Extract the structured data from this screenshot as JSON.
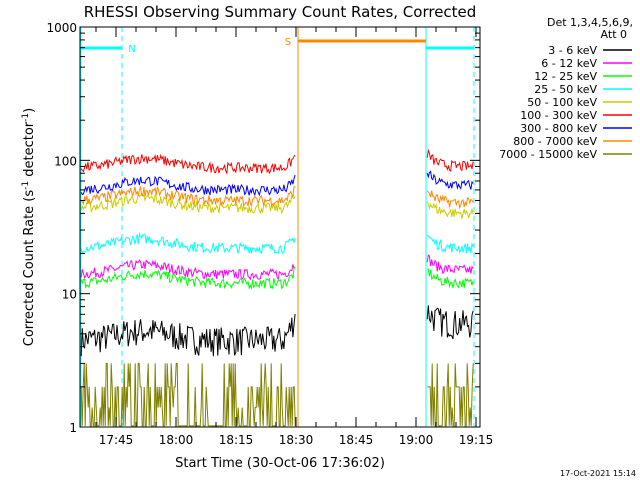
{
  "chart_data": {
    "type": "line",
    "title": "RHESSI Observing Summary Count Rates, Corrected",
    "xlabel": "Start Time (30-Oct-06 17:36:02)",
    "ylabel_main": "Corrected Count Rate (s",
    "ylabel_sup1": "-1",
    "ylabel_mid": " detector",
    "ylabel_sup2": "-1",
    "ylabel_end": ")",
    "y_scale": "log",
    "ylim": [
      1,
      1000
    ],
    "xlim_minutes": [
      36,
      136
    ],
    "y_ticks": [
      {
        "value": 1,
        "label": "1"
      },
      {
        "value": 10,
        "label": "10"
      },
      {
        "value": 100,
        "label": "100"
      },
      {
        "value": 1000,
        "label": "1000"
      }
    ],
    "x_ticks": [
      {
        "minute": 45,
        "label": "17:45"
      },
      {
        "minute": 60,
        "label": "18:00"
      },
      {
        "minute": 75,
        "label": "18:15"
      },
      {
        "minute": 90,
        "label": "18:30"
      },
      {
        "minute": 105,
        "label": "18:45"
      },
      {
        "minute": 120,
        "label": "19:00"
      },
      {
        "minute": 135,
        "label": "19:15"
      }
    ],
    "legend_header": [
      "Det 1,3,4,5,6,9,",
      "Att 0"
    ],
    "legend_placement": "right",
    "series": [
      {
        "name": "3 - 6 keV",
        "color": "#000000",
        "level_before": 4.5,
        "level_after": 6
      },
      {
        "name": "6 - 12 keV",
        "color": "#ff00ff",
        "level_before": 14,
        "level_after": 15
      },
      {
        "name": "12 - 25 keV",
        "color": "#00ff00",
        "level_before": 12,
        "level_after": 12
      },
      {
        "name": "25 - 50 keV",
        "color": "#00ffff",
        "level_before": 22,
        "level_after": 22
      },
      {
        "name": "50 - 100 keV",
        "color": "#cccc00",
        "level_before": 44,
        "level_after": 40
      },
      {
        "name": "100 - 300 keV",
        "color": "#ff0000",
        "level_before": 88,
        "level_after": 90
      },
      {
        "name": "300 - 800 keV",
        "color": "#0000ff",
        "level_before": 60,
        "level_after": 65
      },
      {
        "name": "800 - 7000 keV",
        "color": "#ff8800",
        "level_before": 50,
        "level_after": 48
      },
      {
        "name": "7000 - 15000 keV",
        "color": "#808000",
        "level_before": 1.5,
        "level_after": 1.5
      }
    ],
    "annotations": [
      {
        "kind": "night",
        "label": "N",
        "color": "#00ffff",
        "segments": [
          [
            36,
            46.5
          ],
          [
            122.5,
            134.5
          ]
        ]
      },
      {
        "kind": "saa",
        "label": "S",
        "color": "#ff8800",
        "segments": [
          [
            90.5,
            122.5
          ]
        ]
      }
    ],
    "vertical_markers": [
      {
        "minute": 46.5,
        "color": "#00ffff",
        "dashed": true
      },
      {
        "minute": 90.5,
        "color": "#ff8800",
        "dashed": false
      },
      {
        "minute": 122.5,
        "color": "#00ffff",
        "dashed": false
      },
      {
        "minute": 134.5,
        "color": "#00ffff",
        "dashed": true
      },
      {
        "minute": 36.2,
        "color": "#00ffff",
        "dashed": false
      }
    ],
    "data_gap_minutes": [
      90,
      122.5
    ],
    "footer_timestamp": "17-Oct-2021 15:14"
  }
}
